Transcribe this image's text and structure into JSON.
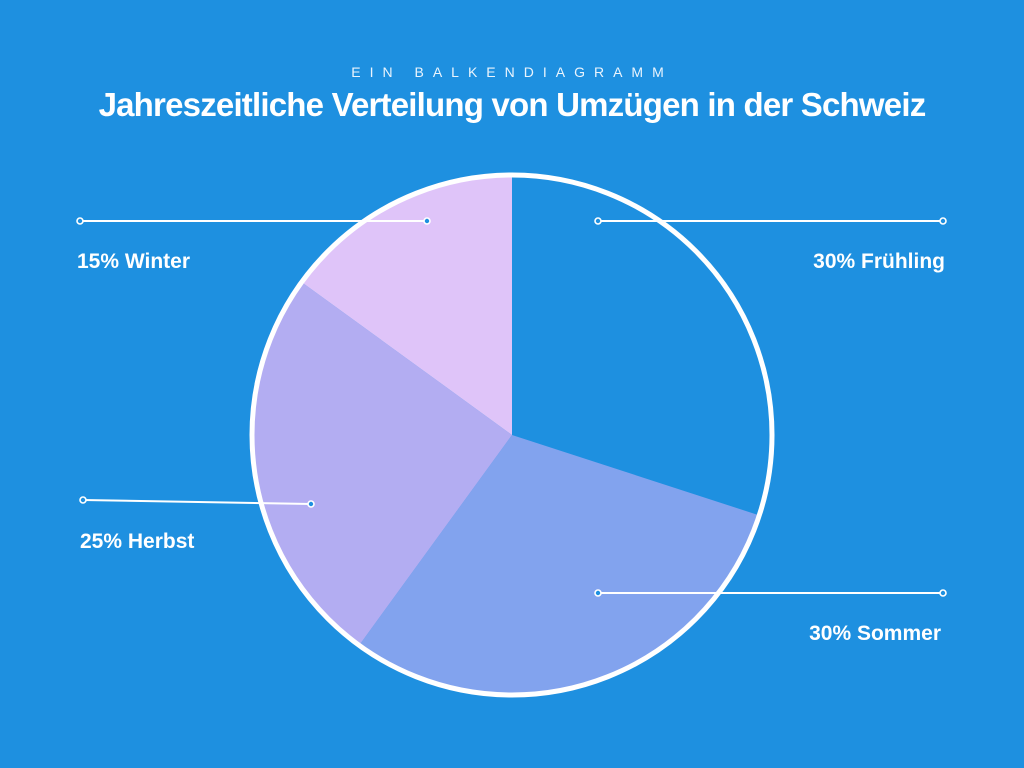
{
  "header": {
    "kicker": "EIN BALKENDIAGRAMM",
    "title": "Jahreszeitliche Verteilung von Umzügen in der Schweiz"
  },
  "colors": {
    "background": "#1e90e0",
    "outline": "#ffffff"
  },
  "chart_data": {
    "type": "pie",
    "title": "Jahreszeitliche Verteilung von Umzügen in der Schweiz",
    "unit": "%",
    "slices": [
      {
        "label": "Frühling",
        "value": 30,
        "display": "30% Frühling",
        "color": "#1e90e0"
      },
      {
        "label": "Sommer",
        "value": 30,
        "display": "30% Sommer",
        "color": "#82a3ee"
      },
      {
        "label": "Herbst",
        "value": 25,
        "display": "25% Herbst",
        "color": "#b3adf2"
      },
      {
        "label": "Winter",
        "value": 15,
        "display": "15% Winter",
        "color": "#dfc4f9"
      }
    ]
  }
}
